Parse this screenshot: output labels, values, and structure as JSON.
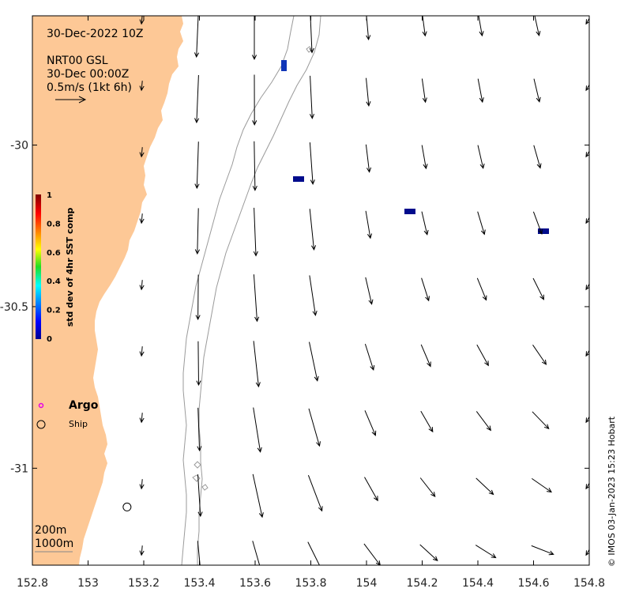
{
  "header": {
    "title": "30-Dec-2022 10Z",
    "source_line": "NRT00 GSL",
    "data_time": "30-Dec 00:00Z",
    "scale_label": "0.5m/s (1kt 6h)"
  },
  "colorbar": {
    "label": "std dev of 4hr SST comp",
    "ticks": [
      "1",
      "0.8",
      "0.6",
      "0.4",
      "0.2",
      "0"
    ]
  },
  "legend": {
    "argo_label": "Argo",
    "ship_label": "Ship",
    "argo_color": "#e600e6"
  },
  "contours": {
    "label_200": "200m",
    "label_1000": "1000m"
  },
  "axes": {
    "x_ticks": [
      "152.8",
      "153",
      "153.2",
      "153.4",
      "153.6",
      "153.8",
      "154",
      "154.2",
      "154.4",
      "154.6",
      "154.8"
    ],
    "y_ticks": [
      "-30",
      "-30.5",
      "-31"
    ],
    "lon_range": [
      152.8,
      154.8
    ],
    "lat_range": [
      -31.3,
      -29.6
    ]
  },
  "credit": "© IMOS 03-Jan-2023 15:23 Hobart",
  "colors": {
    "land": "#fdc896",
    "sst_marker": "#000c8c",
    "sst_marker_light": "#1036b8"
  },
  "ship": {
    "lon": 153.14,
    "lat": -31.12
  }
}
